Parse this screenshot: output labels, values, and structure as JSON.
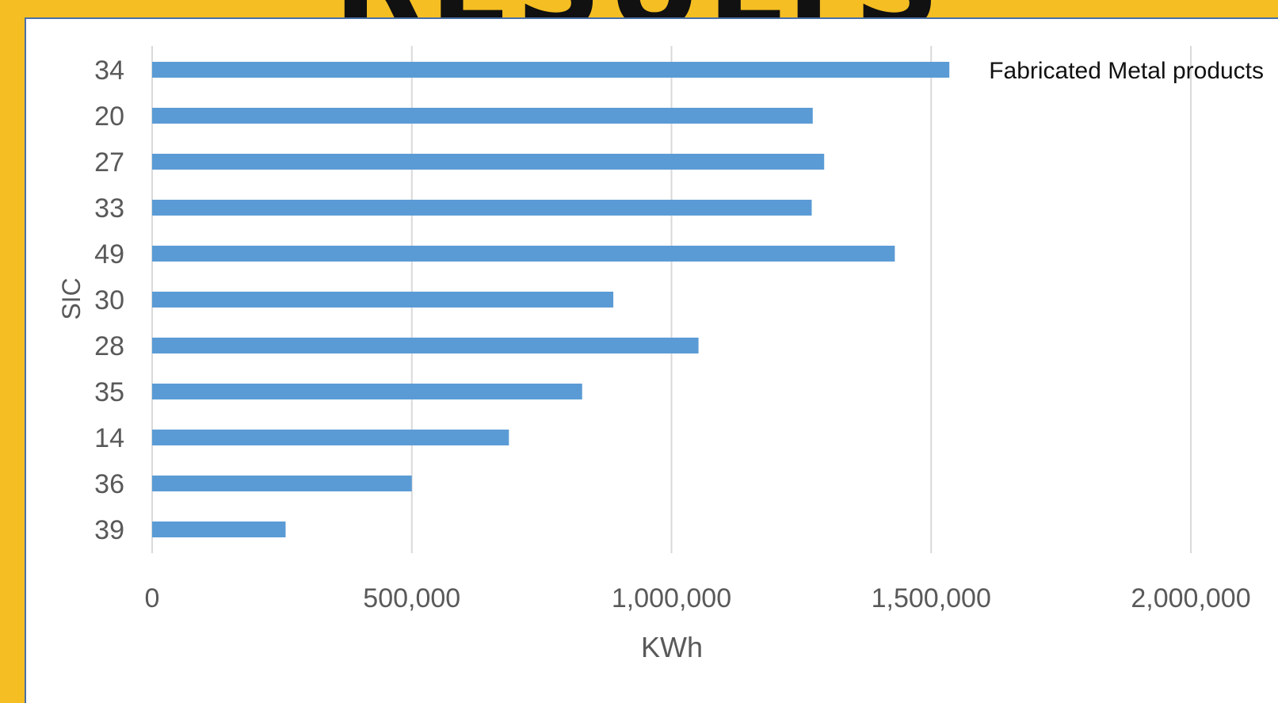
{
  "slide": {
    "title": "RESULTS"
  },
  "colors": {
    "background": "#F5BE23",
    "panel": "#FFFFFF",
    "bar": "#5B9BD5",
    "grid": "#D9D9D9",
    "text": "#595959"
  },
  "chart_data": {
    "type": "bar",
    "orientation": "horizontal",
    "categories": [
      "34",
      "20",
      "27",
      "33",
      "49",
      "30",
      "28",
      "35",
      "14",
      "36",
      "39"
    ],
    "values": [
      1535000,
      1272000,
      1294000,
      1270000,
      1430000,
      888000,
      1052000,
      828000,
      687000,
      500000,
      257000
    ],
    "xlabel": "KWh",
    "ylabel": "SIC",
    "xlim": [
      0,
      2000000
    ],
    "x_ticks": [
      0,
      500000,
      1000000,
      1500000,
      2000000
    ],
    "x_tick_labels": [
      "0",
      "500,000",
      "1,000,000",
      "1,500,000",
      "2,000,000"
    ],
    "grid": "vertical",
    "legend": "none",
    "annotations": [
      {
        "category": "34",
        "text": "Fabricated Metal products"
      }
    ]
  }
}
